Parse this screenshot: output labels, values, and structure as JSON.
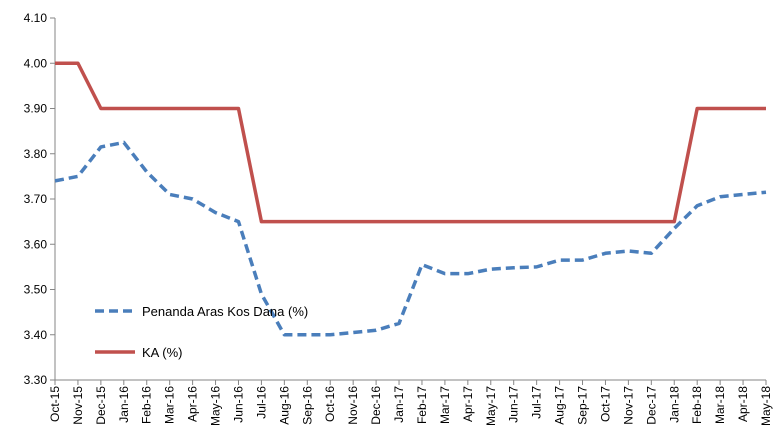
{
  "chart_data": {
    "type": "line",
    "title": "",
    "xlabel": "",
    "ylabel": "",
    "ylim": [
      3.3,
      4.1
    ],
    "yticks": [
      "3.30",
      "3.40",
      "3.50",
      "3.60",
      "3.70",
      "3.80",
      "3.90",
      "4.00",
      "4.10"
    ],
    "grid": false,
    "legend_position": "bottom-left",
    "categories": [
      "Oct-15",
      "Nov-15",
      "Dec-15",
      "Jan-16",
      "Feb-16",
      "Mar-16",
      "Apr-16",
      "May-16",
      "Jun-16",
      "Jul-16",
      "Aug-16",
      "Sep-16",
      "Oct-16",
      "Nov-16",
      "Dec-16",
      "Jan-17",
      "Feb-17",
      "Mar-17",
      "Apr-17",
      "May-17",
      "Jun-17",
      "Jul-17",
      "Aug-17",
      "Sep-17",
      "Oct-17",
      "Nov-17",
      "Dec-17",
      "Jan-18",
      "Feb-18",
      "Mar-18",
      "Apr-18",
      "May-18"
    ],
    "series": [
      {
        "name": "Penanda Aras Kos Dana (%)",
        "color": "#4a7ebb",
        "style": "dashed",
        "values": [
          3.74,
          3.75,
          3.815,
          3.825,
          3.76,
          3.71,
          3.7,
          3.67,
          3.65,
          3.49,
          3.4,
          3.4,
          3.4,
          3.405,
          3.41,
          3.425,
          3.555,
          3.535,
          3.535,
          3.545,
          3.548,
          3.55,
          3.565,
          3.565,
          3.58,
          3.585,
          3.58,
          3.635,
          3.685,
          3.705,
          3.71,
          3.715
        ]
      },
      {
        "name": "KA (%)",
        "color": "#c0504d",
        "style": "solid",
        "values": [
          4.0,
          4.0,
          3.9,
          3.9,
          3.9,
          3.9,
          3.9,
          3.9,
          3.9,
          3.65,
          3.65,
          3.65,
          3.65,
          3.65,
          3.65,
          3.65,
          3.65,
          3.65,
          3.65,
          3.65,
          3.65,
          3.65,
          3.65,
          3.65,
          3.65,
          3.65,
          3.65,
          3.65,
          3.9,
          3.9,
          3.9,
          3.9
        ]
      }
    ]
  }
}
